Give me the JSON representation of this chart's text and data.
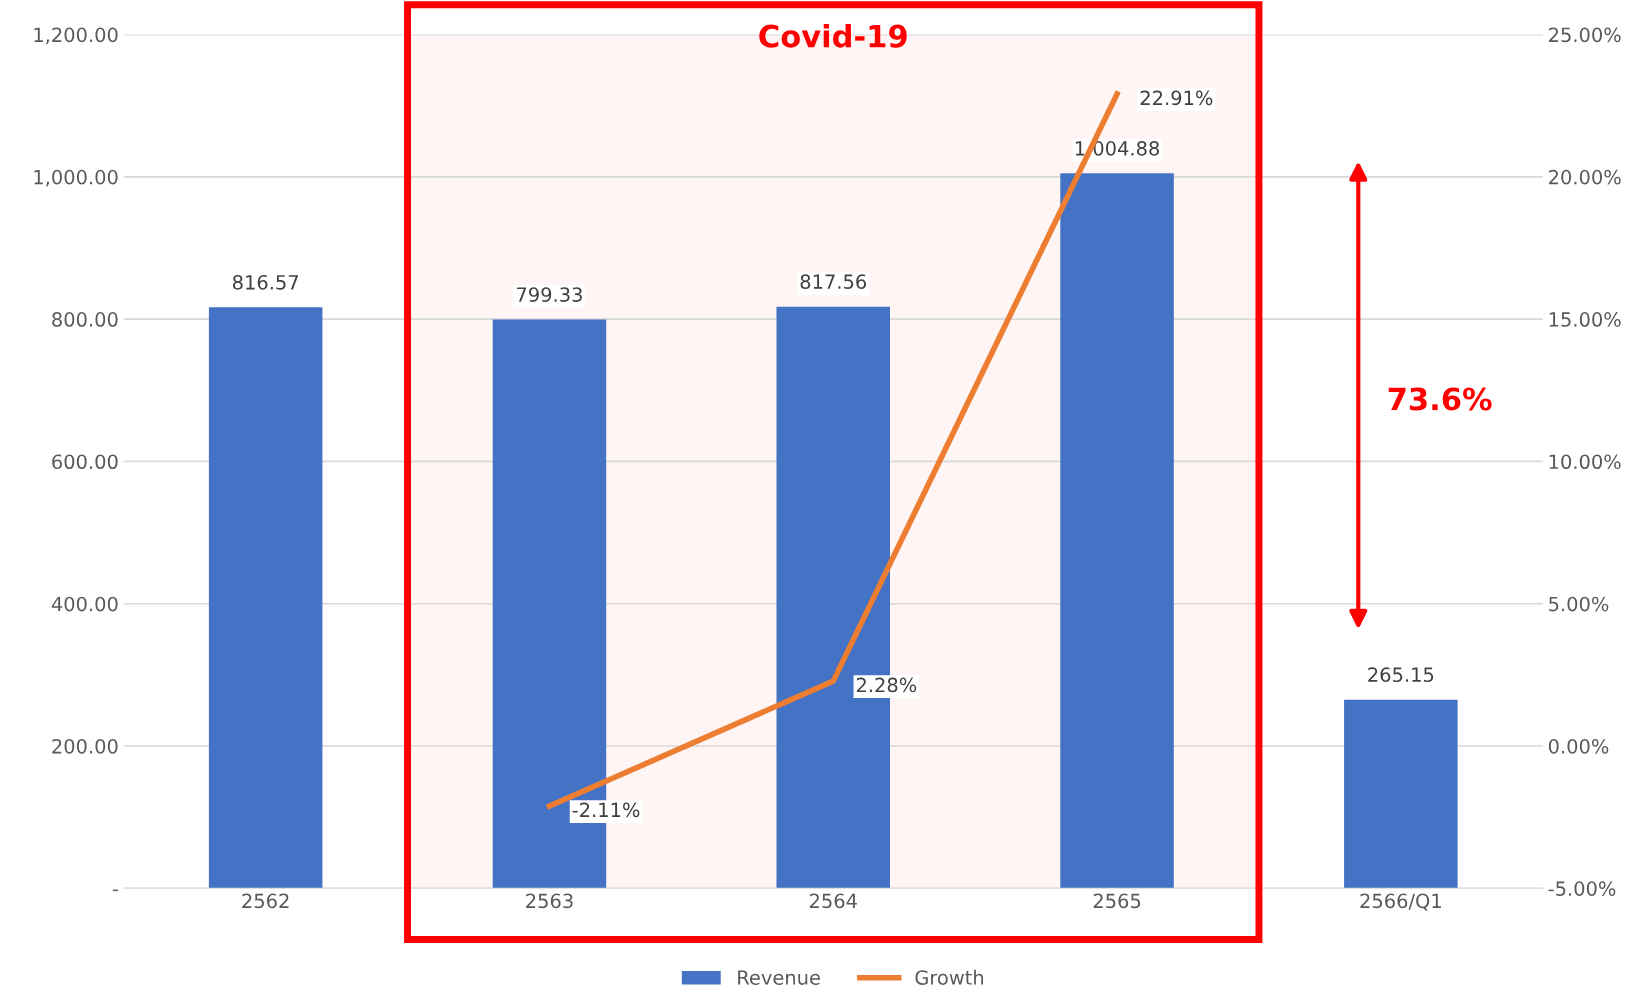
{
  "chart_data": {
    "type": "bar",
    "categories": [
      "2562",
      "2563",
      "2564",
      "2565",
      "2566/Q1"
    ],
    "series": [
      {
        "name": "Revenue",
        "color": "#4472c4",
        "values": [
          816.57,
          799.33,
          817.56,
          1004.88,
          265.15
        ],
        "value_labels": [
          "816.57",
          "799.33",
          "817.56",
          "1,004.88",
          "265.15"
        ]
      },
      {
        "name": "Growth",
        "type": "line",
        "axis": "y2",
        "color": "#ed7d31",
        "values": [
          null,
          -2.11,
          2.28,
          22.91,
          null
        ],
        "value_labels": [
          null,
          "-2.11%",
          "2.28%",
          "22.91%",
          null
        ]
      }
    ],
    "ylim": [
      0,
      1200
    ],
    "yticks": [
      {
        "value": 0,
        "label": "-"
      },
      {
        "value": 200,
        "label": "200.00"
      },
      {
        "value": 400,
        "label": "400.00"
      },
      {
        "value": 600,
        "label": "600.00"
      },
      {
        "value": 800,
        "label": "800.00"
      },
      {
        "value": 1000,
        "label": "1,000.00"
      },
      {
        "value": 1200,
        "label": "1,200.00"
      }
    ],
    "y2lim": [
      -5,
      25
    ],
    "y2ticks": [
      {
        "value": -5,
        "label": "-5.00%"
      },
      {
        "value": 0,
        "label": "0.00%"
      },
      {
        "value": 5,
        "label": "5.00%"
      },
      {
        "value": 10,
        "label": "10.00%"
      },
      {
        "value": 15,
        "label": "15.00%"
      },
      {
        "value": 20,
        "label": "20.00%"
      },
      {
        "value": 25,
        "label": "25.00%"
      }
    ],
    "bands": [
      {
        "axis": "x",
        "from": "2563",
        "to": "2565",
        "label": "Covid-19",
        "color": "#ff0000"
      }
    ],
    "annotations": [
      "73.6%"
    ],
    "grid": "y",
    "legend": "bottom",
    "marker": "none",
    "line_style": "solid"
  }
}
